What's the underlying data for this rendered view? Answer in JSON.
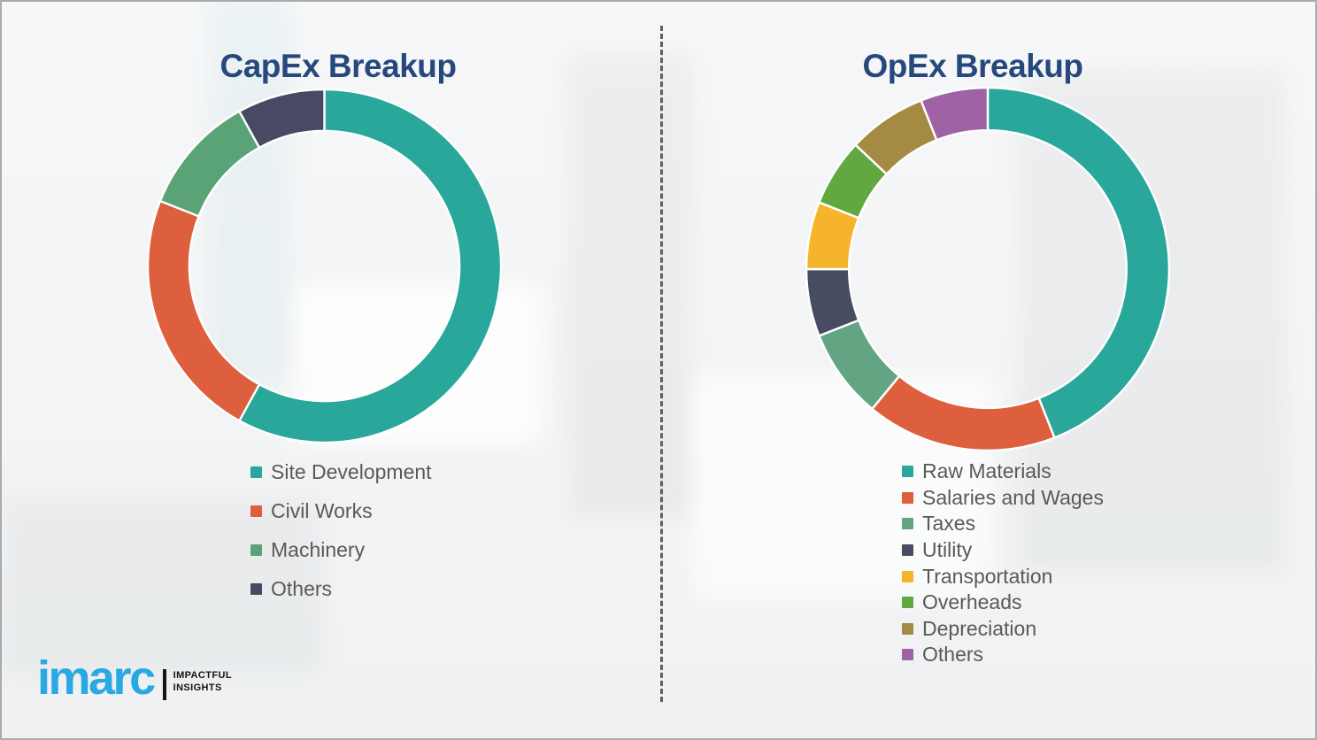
{
  "colors": {
    "background": "#f4f5f6",
    "frame_border": "#a9abad",
    "divider_dash": "#5d5f60",
    "title_text": "#26487d",
    "legend_text": "#595959",
    "brand_blue": "#29a9e1",
    "tagline_black": "#141414"
  },
  "chart_data": [
    {
      "type": "pie",
      "variant": "donut",
      "title": "CapEx Breakup",
      "categories": [
        "Site Development",
        "Civil Works",
        "Machinery",
        "Others"
      ],
      "values": [
        58,
        23,
        11,
        8
      ],
      "values_represent": "share_percent_estimated_from_arc_angles",
      "colors": [
        "#28a79a",
        "#de5f3d",
        "#5aa376",
        "#474a62"
      ],
      "start_angle_deg": 0,
      "direction": "clockwise",
      "inner_radius_ratio": 0.765,
      "legend_position": "below-left",
      "data_labels": "none"
    },
    {
      "type": "pie",
      "variant": "donut",
      "title": "OpEx Breakup",
      "categories": [
        "Raw Materials",
        "Salaries and Wages",
        "Taxes",
        "Utility",
        "Transportation",
        "Overheads",
        "Depreciation",
        "Others"
      ],
      "values": [
        44,
        17,
        8,
        6,
        6,
        6,
        7,
        6
      ],
      "values_represent": "share_percent_estimated_from_arc_angles",
      "colors": [
        "#28a79a",
        "#de5f3d",
        "#63a483",
        "#484c63",
        "#f5b42c",
        "#62a841",
        "#a58a44",
        "#9e62a5"
      ],
      "start_angle_deg": 0,
      "direction": "clockwise",
      "inner_radius_ratio": 0.765,
      "legend_position": "below-left",
      "data_labels": "none"
    }
  ],
  "logo": {
    "brand": "imarc",
    "tagline_line1": "IMPACTFUL",
    "tagline_line2": "INSIGHTS"
  }
}
